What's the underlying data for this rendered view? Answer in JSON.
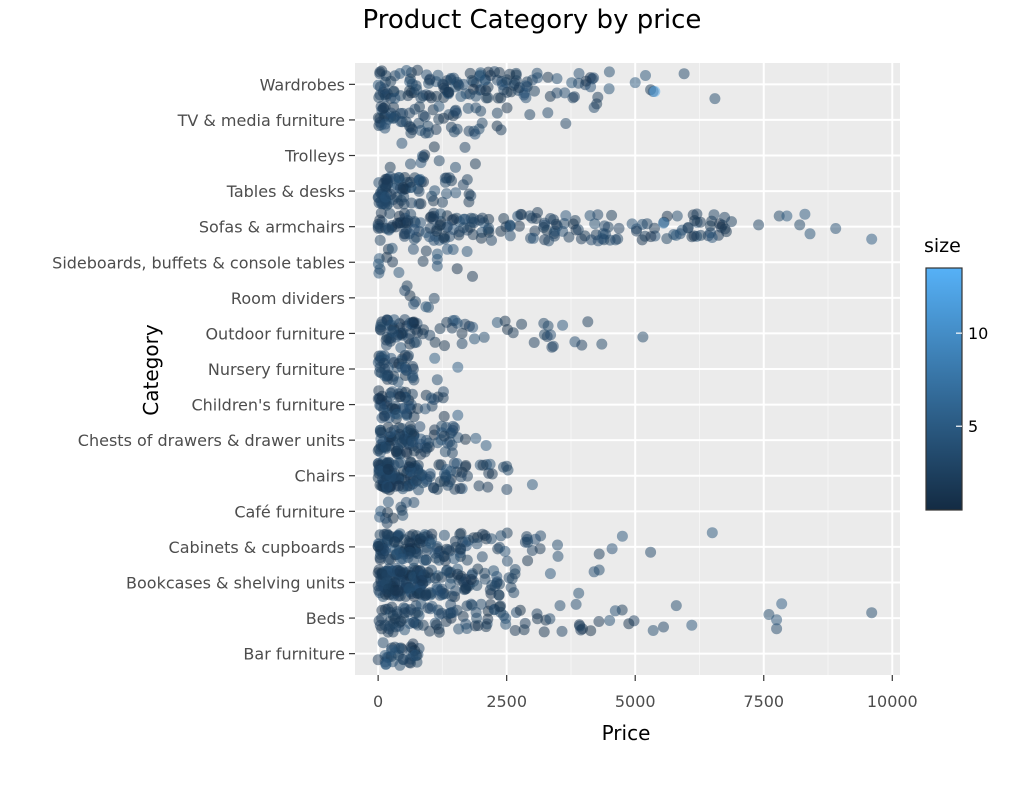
{
  "chart_data": {
    "type": "scatter",
    "title": "Product Category by price",
    "xlabel": "Price",
    "ylabel": "Category",
    "xlim": [
      -450,
      10150
    ],
    "xticks": [
      0,
      2500,
      5000,
      7500,
      10000
    ],
    "xtick_labels": [
      "0",
      "2500",
      "5000",
      "7500",
      "10000"
    ],
    "categories": [
      "Bar furniture",
      "Beds",
      "Bookcases & shelving units",
      "Cabinets & cupboards",
      "Café furniture",
      "Chairs",
      "Chests of drawers & drawer units",
      "Children's furniture",
      "Nursery furniture",
      "Outdoor furniture",
      "Room dividers",
      "Sideboards, buffets & console tables",
      "Sofas & armchairs",
      "Tables & desks",
      "Trolleys",
      "TV & media furniture",
      "Wardrobes"
    ],
    "grid": true,
    "legend": {
      "title": "size",
      "position": "right",
      "ticks": [
        5,
        10
      ],
      "range": [
        0.5,
        13.5
      ],
      "colors": [
        "#132b43",
        "#56b1f7"
      ]
    },
    "point_alpha": 0.5,
    "jitter_band": 0.4,
    "series": [
      {
        "category": "Bar furniture",
        "price_clusters": [
          [
            0,
            800,
            30
          ]
        ],
        "extra_points": [
          [
            260,
            0.1
          ],
          [
            410,
            0.15
          ],
          [
            640,
            0.05
          ],
          [
            720,
            -0.05
          ],
          [
            150,
            -0.3
          ]
        ]
      },
      {
        "category": "Beds",
        "price_clusters": [
          [
            0,
            800,
            40
          ],
          [
            800,
            2300,
            40
          ],
          [
            2300,
            5000,
            30
          ]
        ],
        "extra_points": [
          [
            5350,
            -0.35
          ],
          [
            5550,
            -0.25
          ],
          [
            5800,
            0.35
          ],
          [
            6100,
            -0.2
          ],
          [
            7600,
            0.1
          ],
          [
            7750,
            -0.3
          ],
          [
            7750,
            -0.05
          ],
          [
            7850,
            0.4
          ],
          [
            9600,
            0.15
          ]
        ]
      },
      {
        "category": "Bookcases & shelving units",
        "price_clusters": [
          [
            0,
            800,
            100
          ],
          [
            800,
            1800,
            60
          ],
          [
            1800,
            2700,
            25
          ]
        ],
        "extra_points": [
          [
            3350,
            0.25
          ],
          [
            3900,
            -0.3
          ],
          [
            4200,
            0.3
          ],
          [
            4300,
            0.35
          ]
        ]
      },
      {
        "category": "Cabinets & cupboards",
        "price_clusters": [
          [
            0,
            800,
            70
          ],
          [
            800,
            1800,
            45
          ],
          [
            1800,
            3500,
            25
          ]
        ],
        "extra_points": [
          [
            4300,
            -0.2
          ],
          [
            4550,
            -0.05
          ],
          [
            4750,
            0.3
          ],
          [
            5300,
            -0.15
          ],
          [
            6500,
            0.4
          ]
        ]
      },
      {
        "category": "Café furniture",
        "price_clusters": [
          [
            0,
            700,
            12
          ]
        ],
        "extra_points": []
      },
      {
        "category": "Chairs",
        "price_clusters": [
          [
            0,
            800,
            90
          ],
          [
            800,
            1800,
            35
          ],
          [
            1800,
            2700,
            12
          ]
        ],
        "extra_points": [
          [
            3000,
            -0.25
          ]
        ]
      },
      {
        "category": "Chests of drawers & drawer units",
        "price_clusters": [
          [
            0,
            800,
            60
          ],
          [
            800,
            1700,
            30
          ]
        ],
        "extra_points": [
          [
            1900,
            0.05
          ],
          [
            2100,
            -0.15
          ]
        ]
      },
      {
        "category": "Children's furniture",
        "price_clusters": [
          [
            0,
            700,
            45
          ],
          [
            700,
            1300,
            10
          ]
        ],
        "extra_points": [
          [
            1550,
            -0.3
          ]
        ]
      },
      {
        "category": "Nursery furniture",
        "price_clusters": [
          [
            0,
            700,
            40
          ]
        ],
        "extra_points": [
          [
            1100,
            0.3
          ],
          [
            1150,
            -0.3
          ],
          [
            1550,
            0.05
          ]
        ]
      },
      {
        "category": "Outdoor furniture",
        "price_clusters": [
          [
            0,
            800,
            45
          ],
          [
            800,
            1800,
            15
          ],
          [
            1800,
            4200,
            20
          ]
        ],
        "extra_points": [
          [
            4350,
            -0.3
          ],
          [
            5150,
            -0.1
          ]
        ]
      },
      {
        "category": "Room dividers",
        "price_clusters": [
          [
            500,
            1400,
            8
          ]
        ],
        "extra_points": []
      },
      {
        "category": "Sideboards, buffets & console tables",
        "price_clusters": [
          [
            0,
            1900,
            20
          ]
        ],
        "extra_points": []
      },
      {
        "category": "Sofas & armchairs",
        "price_clusters": [
          [
            0,
            1000,
            40
          ],
          [
            1000,
            3500,
            80
          ],
          [
            3500,
            6900,
            70
          ]
        ],
        "extra_points": [
          [
            7400,
            0.05
          ],
          [
            7800,
            0.3
          ],
          [
            7950,
            0.3
          ],
          [
            8200,
            0.05
          ],
          [
            8300,
            0.35
          ],
          [
            8400,
            -0.2
          ],
          [
            8900,
            -0.05
          ],
          [
            9600,
            -0.35
          ]
        ]
      },
      {
        "category": "Tables & desks",
        "price_clusters": [
          [
            0,
            800,
            60
          ],
          [
            800,
            1900,
            20
          ]
        ],
        "extra_points": []
      },
      {
        "category": "Trolleys",
        "price_clusters": [
          [
            0,
            1900,
            12
          ]
        ],
        "extra_points": []
      },
      {
        "category": "TV & media furniture",
        "price_clusters": [
          [
            0,
            1000,
            40
          ],
          [
            1000,
            2600,
            25
          ]
        ],
        "extra_points": [
          [
            2950,
            0.15
          ],
          [
            3300,
            0.2
          ],
          [
            3650,
            -0.1
          ],
          [
            4200,
            0.35
          ],
          [
            4250,
            0.45
          ]
        ]
      },
      {
        "category": "Wardrobes",
        "price_clusters": [
          [
            0,
            1000,
            40
          ],
          [
            1000,
            2500,
            55
          ],
          [
            2500,
            4500,
            40
          ]
        ],
        "extra_points": [
          [
            5000,
            0.05
          ],
          [
            5200,
            0.25
          ],
          [
            5300,
            -0.15
          ],
          [
            5350,
            -0.2
          ],
          [
            5950,
            0.3
          ],
          [
            6550,
            -0.4
          ]
        ]
      }
    ]
  }
}
